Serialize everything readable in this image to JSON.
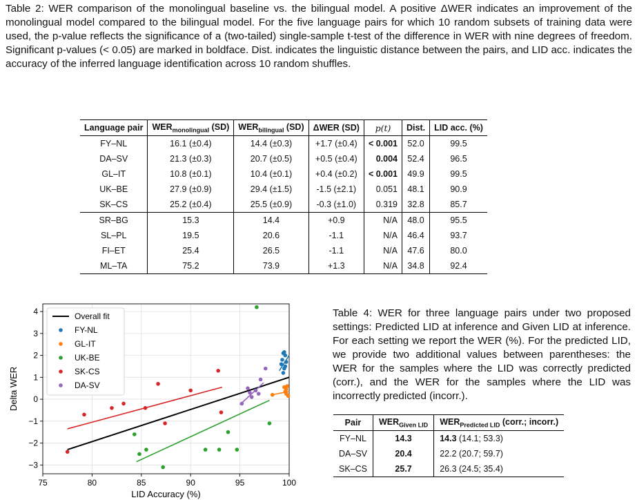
{
  "table2": {
    "caption": "Table 2: WER comparison of the monolingual baseline vs. the bilingual model. A positive ΔWER indicates an improvement of the monolingual model compared to the bilingual model. For the five language pairs for which 10 random subsets of training data were used, the p-value reflects the significance of a (two-tailed) single-sample t-test of the difference in WER with nine degrees of freedom. Significant p-values (< 0.05) are marked in boldface. Dist. indicates the linguistic distance between the pairs, and LID acc. indicates the accuracy of the inferred language identification across 10 random shuffles.",
    "headers": {
      "pair": "Language pair",
      "wer_mono": "WER",
      "wer_mono_sub": "monolingual",
      "wer_mono_suffix": " (SD)",
      "wer_bi": "WER",
      "wer_bi_sub": "bilingual",
      "wer_bi_suffix": " (SD)",
      "dwer": "ΔWER (SD)",
      "p": "p(t)",
      "dist": "Dist.",
      "lid": "LID acc. (%)"
    },
    "rows": [
      {
        "pair": "FY–NL",
        "mono": "16.1 (±0.4)",
        "bi": "14.4 (±0.3)",
        "dwer": "+1.7 (±0.4)",
        "p": "< 0.001",
        "dist": "52.0",
        "lid": "99.5"
      },
      {
        "pair": "DA–SV",
        "mono": "21.3 (±0.3)",
        "bi": "20.7 (±0.5)",
        "dwer": "+0.5 (±0.4)",
        "p": "0.004",
        "dist": "52.4",
        "lid": "96.5"
      },
      {
        "pair": "GL–IT",
        "mono": "10.8 (±0.1)",
        "bi": "10.4 (±0.1)",
        "dwer": "+0.4 (±0.2)",
        "p": "< 0.001",
        "dist": "49.9",
        "lid": "99.5"
      },
      {
        "pair": "UK–BE",
        "mono": "27.9 (±0.9)",
        "bi": "29.4 (±1.5)",
        "dwer": "-1.5 (±2.1)",
        "p": "0.051",
        "dist": "48.1",
        "lid": "90.9"
      },
      {
        "pair": "SK–CS",
        "mono": "25.2 (±0.4)",
        "bi": "25.5 (±0.9)",
        "dwer": "-0.3 (±1.0)",
        "p": "0.319",
        "dist": "32.8",
        "lid": "85.7"
      },
      {
        "pair": "SR–BG",
        "mono": "15.3",
        "bi": "14.4",
        "dwer": "+0.9",
        "p": "N/A",
        "dist": "48.0",
        "lid": "95.5"
      },
      {
        "pair": "SL–PL",
        "mono": "19.5",
        "bi": "20.6",
        "dwer": "-1.1",
        "p": "N/A",
        "dist": "46.4",
        "lid": "93.7"
      },
      {
        "pair": "FI–ET",
        "mono": "25.4",
        "bi": "26.5",
        "dwer": "-1.1",
        "p": "N/A",
        "dist": "47.6",
        "lid": "80.0"
      },
      {
        "pair": "ML–TA",
        "mono": "75.2",
        "bi": "73.9",
        "dwer": "+1.3",
        "p": "N/A",
        "dist": "34.8",
        "lid": "92.4"
      }
    ]
  },
  "table4": {
    "caption": "Table 4: WER for three language pairs under two proposed settings: Predicted LID at inference and Given LID at inference. For each setting we report the WER (%). For the predicted LID, we provide two additional values between parentheses: the WER for the samples where the LID was correctly predicted (corr.), and the WER for the samples where the LID was incorrectly predicted (incorr.).",
    "headers": {
      "pair": "Pair",
      "given": "WER",
      "given_sub": "Given LID",
      "pred": "WER",
      "pred_sub": "Predicted LID",
      "pred_suffix": " (corr.; incorr.)"
    },
    "rows": [
      {
        "pair": "FY–NL",
        "given": "14.3",
        "pred_main": "14.3",
        "pred_extra": " (14.1; 53.3)"
      },
      {
        "pair": "DA–SV",
        "given": "20.4",
        "pred_main": "22.2",
        "pred_extra": " (20.7; 59.7)"
      },
      {
        "pair": "SK–CS",
        "given": "25.7",
        "pred_main": "26.3",
        "pred_extra": " (24.5; 35.4)"
      }
    ]
  },
  "chart_data": {
    "type": "scatter",
    "xlabel": "LID Accuracy (%)",
    "ylabel": "Delta WER",
    "xlim": [
      75,
      100
    ],
    "ylim": [
      -3.4,
      4.35
    ],
    "xticks": [
      75,
      80,
      85,
      90,
      95,
      100
    ],
    "yticks": [
      -3,
      -2,
      -1,
      0,
      1,
      2,
      3,
      4
    ],
    "legend_position": "top-left",
    "series": [
      {
        "name": "Overall fit",
        "kind": "line",
        "color": "#000000",
        "line": [
          [
            77.5,
            -2.3
          ],
          [
            100,
            1.0
          ]
        ]
      },
      {
        "name": "FY-NL",
        "kind": "scatter",
        "color": "#1f77b4",
        "line": [
          [
            99.0,
            1.3
          ],
          [
            100,
            2.0
          ]
        ],
        "points": [
          [
            99.4,
            2.1
          ],
          [
            99.5,
            2.15
          ],
          [
            99.6,
            2.0
          ],
          [
            99.3,
            1.8
          ],
          [
            99.7,
            1.7
          ],
          [
            99.2,
            1.6
          ],
          [
            99.5,
            1.4
          ],
          [
            99.4,
            1.2
          ],
          [
            99.6,
            1.5
          ]
        ]
      },
      {
        "name": "GL-IT",
        "kind": "scatter",
        "color": "#ff7f0e",
        "line": [
          [
            98.2,
            0.2
          ],
          [
            100,
            0.35
          ]
        ],
        "points": [
          [
            98.3,
            0.2
          ],
          [
            99.5,
            0.55
          ],
          [
            99.6,
            0.35
          ],
          [
            99.7,
            0.25
          ],
          [
            99.8,
            0.6
          ],
          [
            99.9,
            0.15
          ],
          [
            99.7,
            0.45
          ]
        ]
      },
      {
        "name": "UK-BE",
        "kind": "scatter",
        "color": "#2ca02c",
        "line": [
          [
            84.5,
            -2.85
          ],
          [
            98,
            -0.05
          ]
        ],
        "points": [
          [
            96.7,
            4.2
          ],
          [
            84.3,
            -1.6
          ],
          [
            84.8,
            -2.5
          ],
          [
            85.5,
            -2.3
          ],
          [
            87.2,
            -3.1
          ],
          [
            91.5,
            -2.3
          ],
          [
            92.9,
            -2.3
          ],
          [
            93.8,
            -1.5
          ],
          [
            94.7,
            -2.3
          ],
          [
            98.0,
            -1.1
          ]
        ]
      },
      {
        "name": "SK-CS",
        "kind": "scatter",
        "color": "#d62728",
        "line": [
          [
            77.5,
            -1.35
          ],
          [
            93.2,
            0.55
          ]
        ],
        "points": [
          [
            77.5,
            -2.4
          ],
          [
            79.2,
            -0.7
          ],
          [
            82.0,
            -0.4
          ],
          [
            83.2,
            -0.2
          ],
          [
            85.4,
            -0.4
          ],
          [
            86.7,
            0.7
          ],
          [
            87.4,
            -1.1
          ],
          [
            90.0,
            0.4
          ],
          [
            92.8,
            1.3
          ],
          [
            93.1,
            -0.6
          ]
        ]
      },
      {
        "name": "DA-SV",
        "kind": "scatter",
        "color": "#9467bd",
        "line": [
          [
            95.0,
            -0.25
          ],
          [
            97.4,
            0.75
          ]
        ],
        "points": [
          [
            95.2,
            -0.2
          ],
          [
            95.8,
            0.5
          ],
          [
            96.2,
            0.1
          ],
          [
            96.6,
            0.4
          ],
          [
            96.9,
            0.25
          ],
          [
            97.1,
            0.9
          ],
          [
            97.6,
            1.4
          ],
          [
            96.0,
            0.3
          ]
        ]
      }
    ]
  }
}
